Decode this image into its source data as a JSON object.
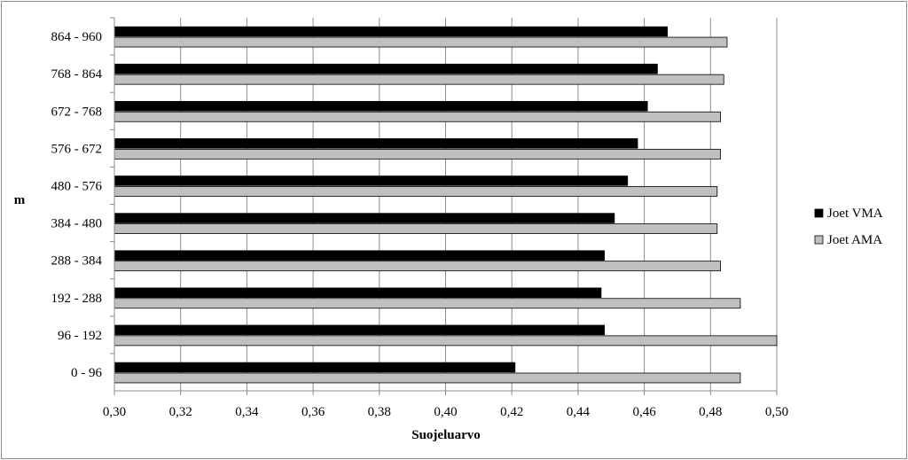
{
  "chart_data": {
    "type": "bar",
    "orientation": "horizontal",
    "title": "",
    "xlabel": "Suojeluarvo",
    "ylabel": "m",
    "xlim": [
      0.3,
      0.5
    ],
    "x_ticks": [
      "0,30",
      "0,32",
      "0,34",
      "0,36",
      "0,38",
      "0,40",
      "0,42",
      "0,44",
      "0,46",
      "0,48",
      "0,50"
    ],
    "x_tick_values": [
      0.3,
      0.32,
      0.34,
      0.36,
      0.38,
      0.4,
      0.42,
      0.44,
      0.46,
      0.48,
      0.5
    ],
    "categories": [
      "0 - 96",
      "96 - 192",
      "192 - 288",
      "288 - 384",
      "384 - 480",
      "480 - 576",
      "576 - 672",
      "672 - 768",
      "768 - 864",
      "864 - 960"
    ],
    "series": [
      {
        "name": "Joet VMA",
        "color": "#000000",
        "values": [
          0.421,
          0.448,
          0.447,
          0.448,
          0.451,
          0.455,
          0.458,
          0.461,
          0.464,
          0.467
        ]
      },
      {
        "name": "Joet AMA",
        "color": "#c0c0c0",
        "values": [
          0.489,
          0.5,
          0.489,
          0.483,
          0.482,
          0.482,
          0.483,
          0.483,
          0.484,
          0.485
        ]
      }
    ],
    "grid": true,
    "legend_position": "right"
  }
}
